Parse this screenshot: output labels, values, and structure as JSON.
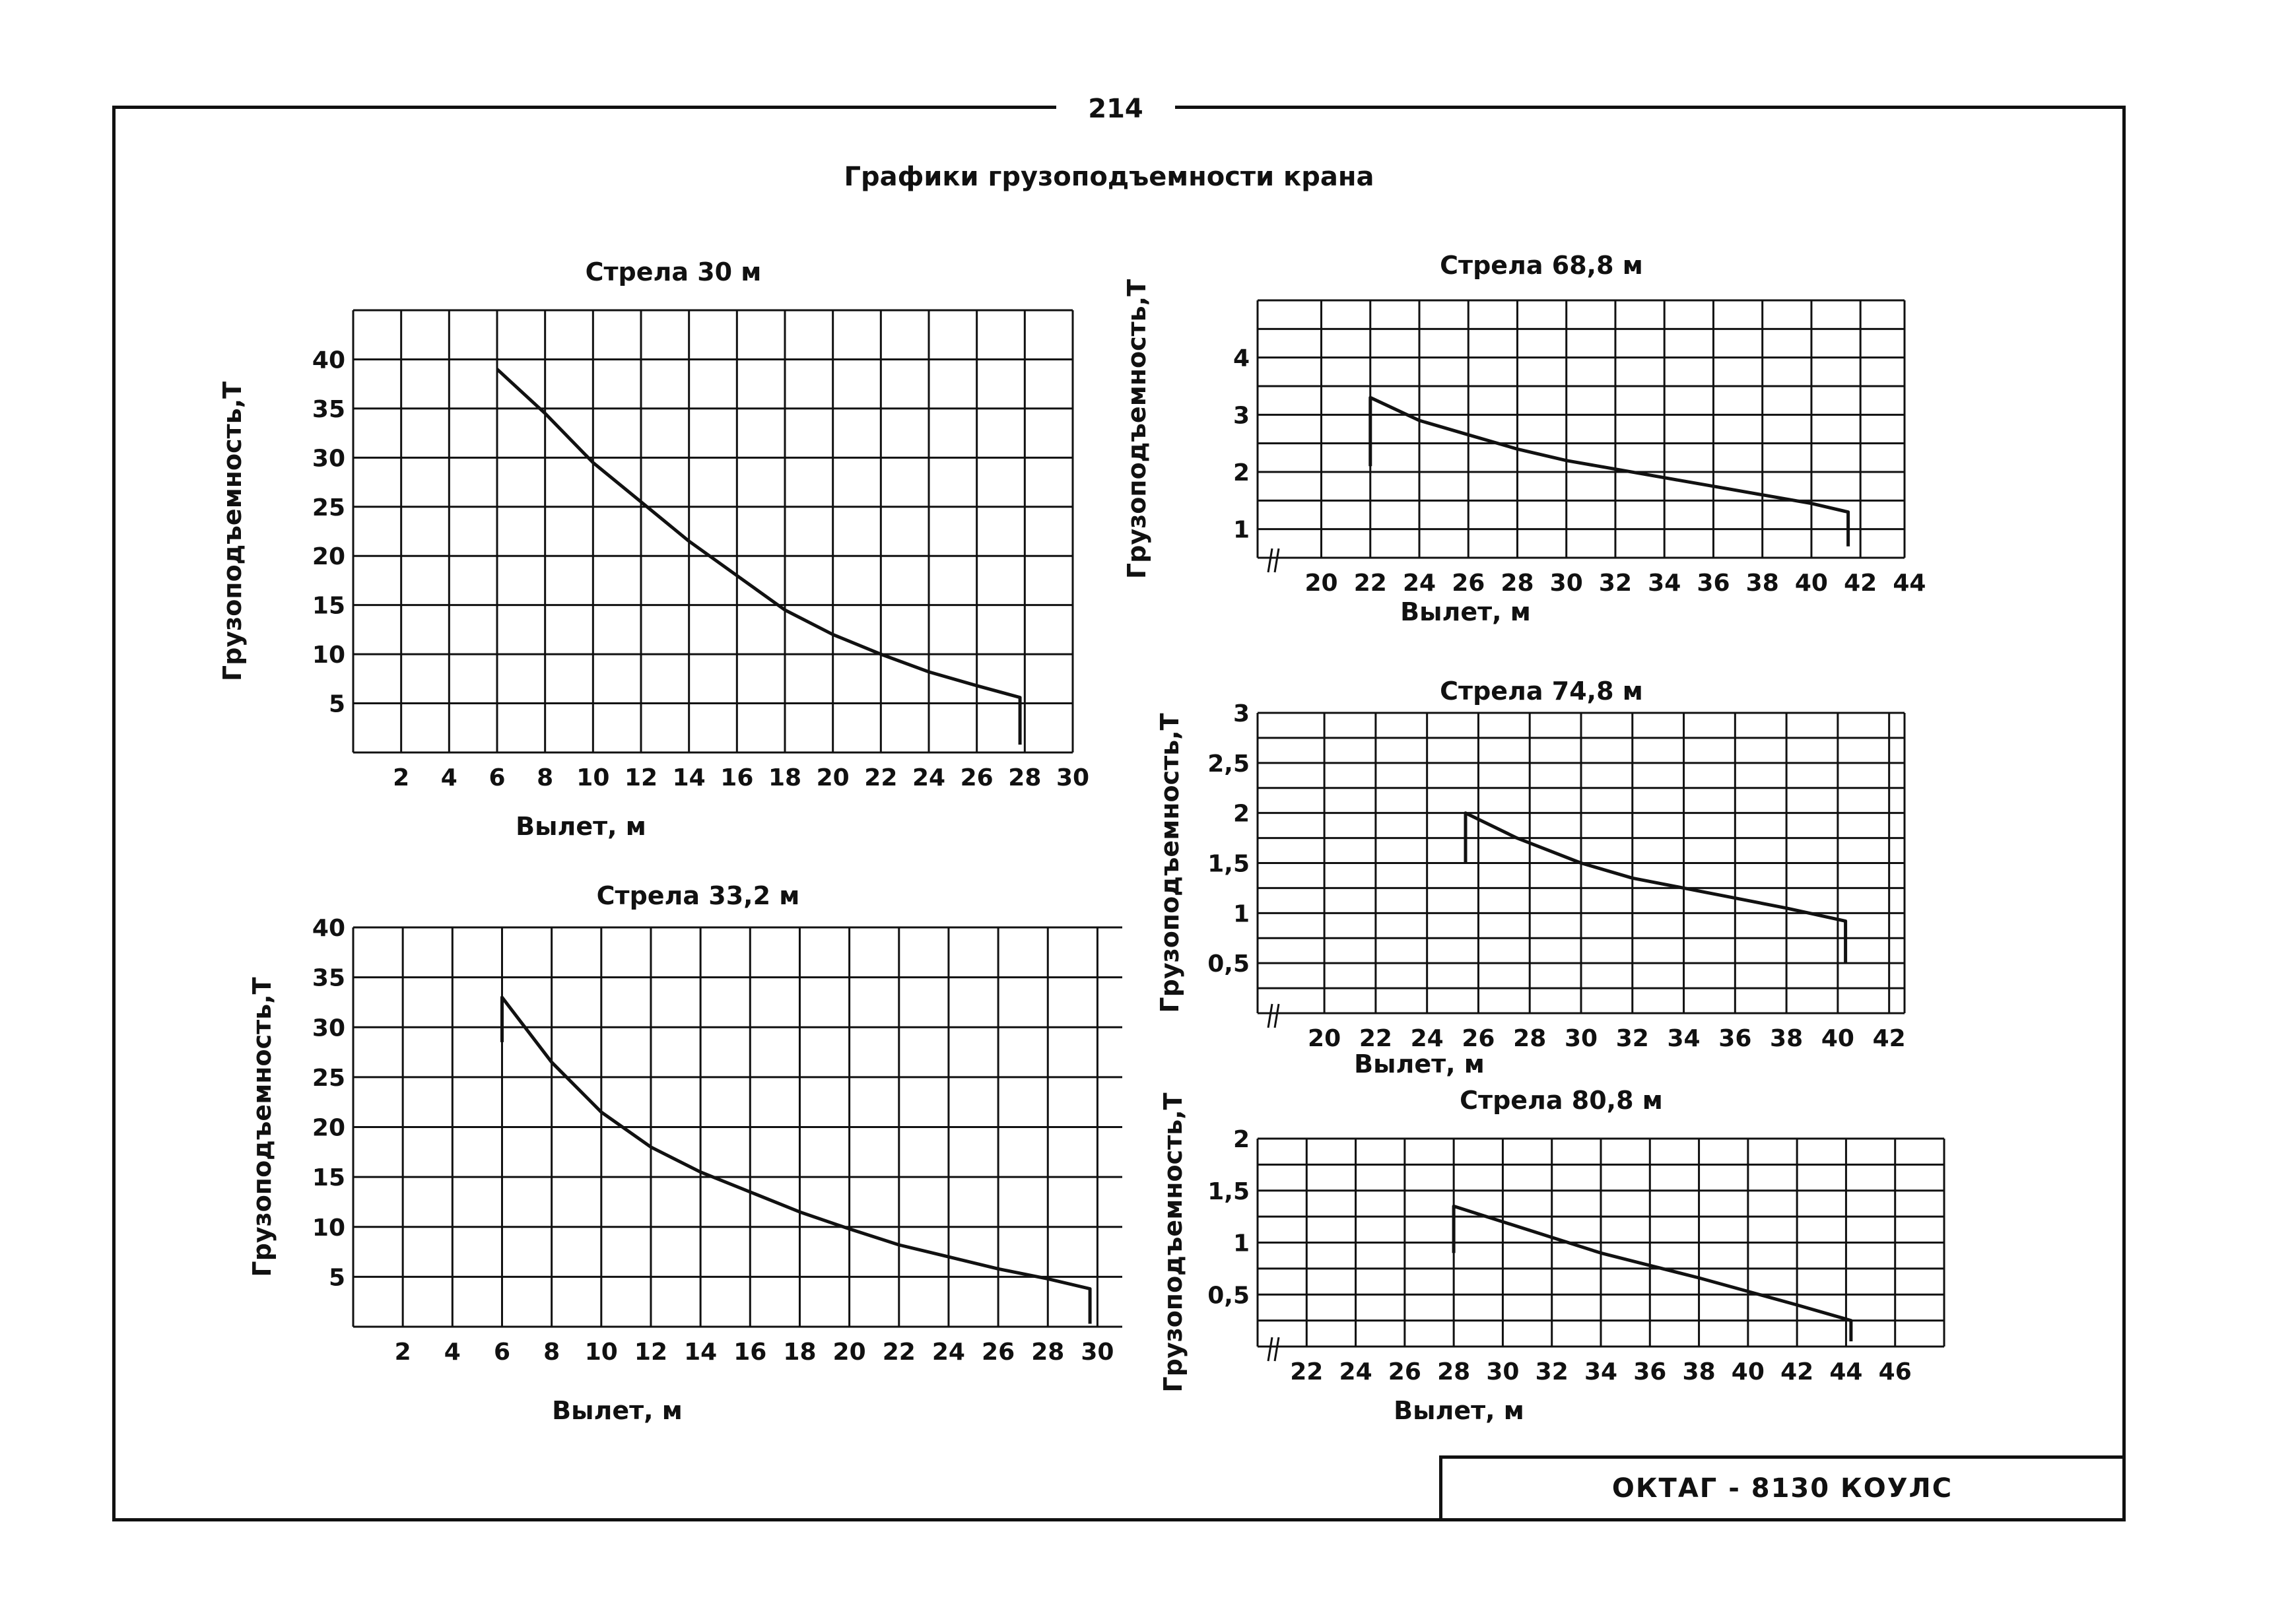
{
  "page": {
    "number": "214",
    "title": "Графики грузоподъемности крана",
    "stamp": "ОКТАГ - 8130 КОУЛС"
  },
  "chart_data": [
    {
      "id": "c1",
      "type": "line",
      "title": "Стрела 30 м",
      "xlabel": "Вылет, м",
      "ylabel": "Грузоподъемность,Т",
      "xlim": [
        0,
        30
      ],
      "ylim": [
        0,
        45
      ],
      "x_ticks": [
        2,
        4,
        6,
        8,
        10,
        12,
        14,
        16,
        18,
        20,
        22,
        24,
        26,
        28,
        30
      ],
      "y_ticks": [
        5,
        10,
        15,
        20,
        25,
        30,
        35,
        40
      ],
      "x_gridlines": [
        0,
        2,
        4,
        6,
        8,
        10,
        12,
        14,
        16,
        18,
        20,
        22,
        24,
        26,
        28,
        30
      ],
      "y_gridlines": [
        0,
        5,
        10,
        15,
        20,
        25,
        30,
        35,
        40,
        45
      ],
      "axis_break": false,
      "grid": true,
      "series": [
        {
          "values": [
            [
              6,
              39
            ],
            [
              8,
              34.5
            ],
            [
              10,
              29.5
            ],
            [
              12,
              25.5
            ],
            [
              14,
              21.5
            ],
            [
              16,
              18
            ],
            [
              18,
              14.5
            ],
            [
              20,
              12
            ],
            [
              22,
              10
            ],
            [
              24,
              8.2
            ],
            [
              26,
              6.8
            ],
            [
              27.8,
              5.6
            ],
            [
              27.8,
              0.8
            ]
          ]
        }
      ]
    },
    {
      "id": "c2",
      "type": "line",
      "title": "Стрела 33,2 м",
      "xlabel": "Вылет, м",
      "ylabel": "Грузоподъемность,Т",
      "xlim": [
        0,
        31
      ],
      "ylim": [
        0,
        40
      ],
      "x_ticks": [
        2,
        4,
        6,
        8,
        10,
        12,
        14,
        16,
        18,
        20,
        22,
        24,
        26,
        28,
        30
      ],
      "y_ticks": [
        5,
        10,
        15,
        20,
        25,
        30,
        35,
        40
      ],
      "x_gridlines": [
        0,
        2,
        4,
        6,
        8,
        10,
        12,
        14,
        16,
        18,
        20,
        22,
        24,
        26,
        28,
        30
      ],
      "y_gridlines": [
        0,
        5,
        10,
        15,
        20,
        25,
        30,
        35,
        40
      ],
      "axis_break": false,
      "grid": true,
      "series": [
        {
          "values": [
            [
              6,
              28.5
            ],
            [
              6,
              33
            ],
            [
              8,
              26.5
            ],
            [
              10,
              21.5
            ],
            [
              12,
              18
            ],
            [
              14,
              15.5
            ],
            [
              16,
              13.5
            ],
            [
              18,
              11.5
            ],
            [
              20,
              9.8
            ],
            [
              22,
              8.2
            ],
            [
              24,
              7
            ],
            [
              26,
              5.8
            ],
            [
              28,
              4.8
            ],
            [
              29.7,
              3.8
            ],
            [
              29.7,
              0.3
            ]
          ]
        }
      ]
    },
    {
      "id": "c3",
      "type": "line",
      "title": "Стрела 68,8 м",
      "xlabel": "Вылет, м",
      "ylabel": "Грузоподъемность,Т",
      "xlim": [
        17.4,
        43.8
      ],
      "ylim": [
        0.5,
        5
      ],
      "x_ticks": [
        20,
        22,
        24,
        26,
        28,
        30,
        32,
        34,
        36,
        38,
        40,
        42,
        44
      ],
      "y_ticks": [
        1,
        2,
        3,
        4
      ],
      "x_gridlines": [
        17.4,
        20,
        22,
        24,
        26,
        28,
        30,
        32,
        34,
        36,
        38,
        40,
        42,
        43.8
      ],
      "y_gridlines": [
        0.5,
        1,
        1.5,
        2,
        2.5,
        3,
        3.5,
        4,
        4.5,
        5
      ],
      "axis_break": true,
      "grid": true,
      "series": [
        {
          "values": [
            [
              22,
              2.1
            ],
            [
              22,
              3.3
            ],
            [
              24,
              2.9
            ],
            [
              26,
              2.65
            ],
            [
              28,
              2.4
            ],
            [
              30,
              2.2
            ],
            [
              32,
              2.05
            ],
            [
              34,
              1.9
            ],
            [
              36,
              1.75
            ],
            [
              38,
              1.6
            ],
            [
              40,
              1.45
            ],
            [
              41.5,
              1.3
            ],
            [
              41.5,
              0.7
            ]
          ]
        }
      ]
    },
    {
      "id": "c4",
      "type": "line",
      "title": "Стрела 74,8 м",
      "xlabel": "Вылет, м",
      "ylabel": "Грузоподъемность,Т",
      "xlim": [
        17.4,
        42.6
      ],
      "ylim": [
        0,
        3
      ],
      "x_ticks": [
        20,
        22,
        24,
        26,
        28,
        30,
        32,
        34,
        36,
        38,
        40,
        42
      ],
      "y_ticks": [
        "0,5",
        "1",
        "1,5",
        "2",
        "2,5",
        "3"
      ],
      "x_gridlines": [
        17.4,
        20,
        22,
        24,
        26,
        28,
        30,
        32,
        34,
        36,
        38,
        40,
        42,
        42.6
      ],
      "y_gridlines": [
        0,
        0.25,
        0.5,
        0.75,
        1,
        1.25,
        1.5,
        1.75,
        2,
        2.25,
        2.5,
        2.75,
        3
      ],
      "axis_break": true,
      "grid": true,
      "series": [
        {
          "values": [
            [
              25.5,
              1.5
            ],
            [
              25.5,
              2
            ],
            [
              27.5,
              1.75
            ],
            [
              30,
              1.5
            ],
            [
              32,
              1.35
            ],
            [
              34,
              1.25
            ],
            [
              36,
              1.15
            ],
            [
              38,
              1.05
            ],
            [
              40.3,
              0.92
            ],
            [
              40.3,
              0.5
            ]
          ]
        }
      ]
    },
    {
      "id": "c5",
      "type": "line",
      "title": "Стрела 80,8 м",
      "xlabel": "Вылет, м",
      "ylabel": "Грузоподъемность,Т",
      "xlim": [
        20,
        48
      ],
      "ylim": [
        0,
        2
      ],
      "x_ticks": [
        22,
        24,
        26,
        28,
        30,
        32,
        34,
        36,
        38,
        40,
        42,
        44,
        46
      ],
      "y_ticks": [
        "0,5",
        "1",
        "1,5",
        "2"
      ],
      "x_gridlines": [
        20,
        22,
        24,
        26,
        28,
        30,
        32,
        34,
        36,
        38,
        40,
        42,
        44,
        46,
        48
      ],
      "y_gridlines": [
        0,
        0.25,
        0.5,
        0.75,
        1,
        1.25,
        1.5,
        1.75,
        2
      ],
      "axis_break": true,
      "grid": true,
      "series": [
        {
          "values": [
            [
              28,
              0.9
            ],
            [
              28,
              1.35
            ],
            [
              30,
              1.2
            ],
            [
              32,
              1.05
            ],
            [
              34,
              0.9
            ],
            [
              36,
              0.78
            ],
            [
              38,
              0.66
            ],
            [
              40,
              0.53
            ],
            [
              42,
              0.4
            ],
            [
              44.2,
              0.25
            ],
            [
              44.2,
              0.05
            ]
          ]
        }
      ]
    }
  ]
}
